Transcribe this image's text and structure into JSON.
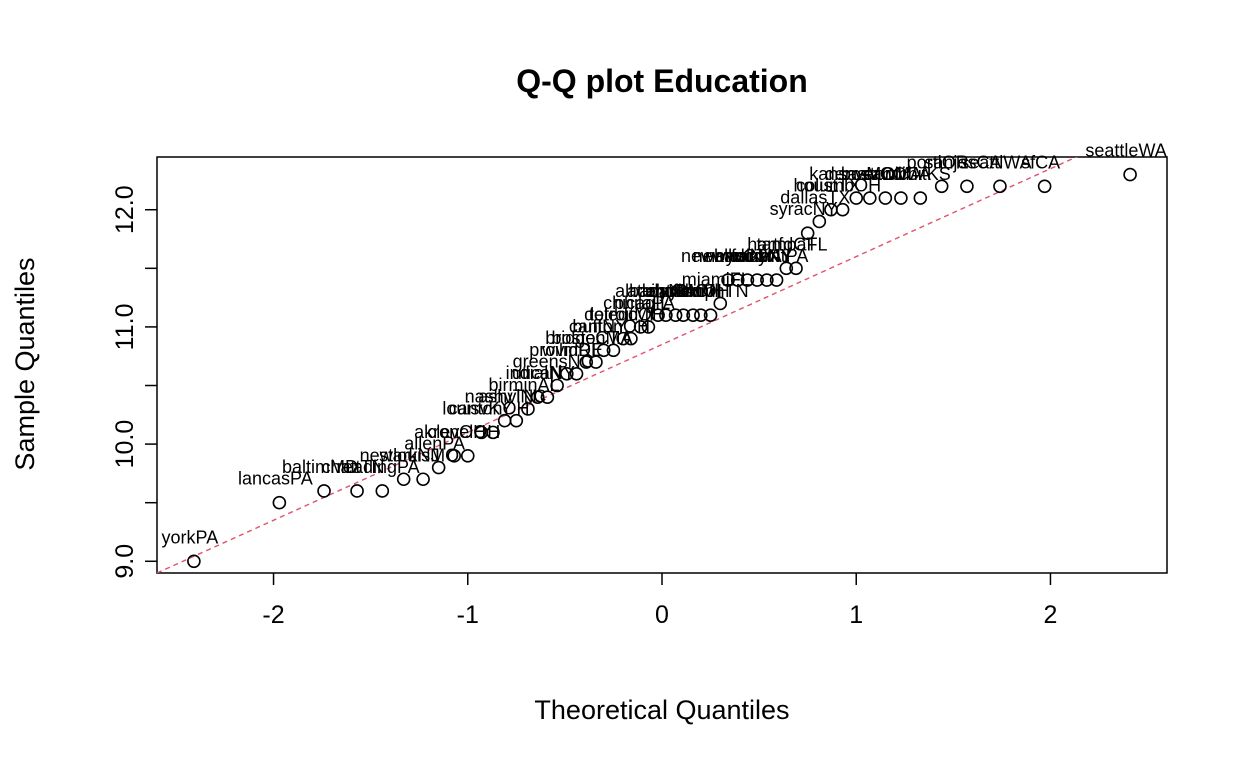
{
  "chart_data": {
    "type": "scatter",
    "title": "Q-Q plot Education",
    "xlabel": "Theoretical Quantiles",
    "ylabel": "Sample Quantiles",
    "xlim": [
      -2.6,
      2.6
    ],
    "ylim": [
      8.9,
      12.45
    ],
    "x_ticks": [
      -2,
      -1,
      0,
      1,
      2
    ],
    "x_tick_labels": [
      "-2",
      "-1",
      "0",
      "1",
      "2"
    ],
    "y_ticks": [
      9.0,
      9.5,
      10.0,
      10.5,
      11.0,
      11.5,
      12.0
    ],
    "y_tick_labels": [
      "9.0",
      "",
      "10.0",
      "",
      "11.0",
      "",
      "12.0"
    ],
    "reference_line": {
      "intercept": 10.85,
      "slope": 0.75,
      "color": "#DF536B",
      "style": "dashed"
    },
    "series": [
      {
        "points": [
          {
            "x": -2.41,
            "y": 9.0,
            "label": "yorkPA"
          },
          {
            "x": -1.97,
            "y": 9.5,
            "label": "lancasPA"
          },
          {
            "x": -1.74,
            "y": 9.6,
            "label": "baltimMD"
          },
          {
            "x": -1.57,
            "y": 9.6,
            "label": "chattTN"
          },
          {
            "x": -1.44,
            "y": 9.6,
            "label": "readingPA"
          },
          {
            "x": -1.33,
            "y": 9.7,
            "label": "newarkNJ"
          },
          {
            "x": -1.23,
            "y": 9.7,
            "label": "stlouisMO"
          },
          {
            "x": -1.15,
            "y": 9.8,
            "label": "allenPA"
          },
          {
            "x": -1.07,
            "y": 9.9,
            "label": "akronOH"
          },
          {
            "x": -1.0,
            "y": 9.9,
            "label": "clevelOH"
          },
          {
            "x": -0.93,
            "y": 10.1,
            "label": "louisvKY"
          },
          {
            "x": -0.87,
            "y": 10.1,
            "label": "cantonOH"
          },
          {
            "x": -0.81,
            "y": 10.2,
            "label": "nashvTN"
          },
          {
            "x": -0.75,
            "y": 10.2,
            "label": "ashvlNC"
          },
          {
            "x": -0.69,
            "y": 10.3,
            "label": "birminAL"
          },
          {
            "x": -0.64,
            "y": 10.4,
            "label": "indiaIN"
          },
          {
            "x": -0.59,
            "y": 10.4,
            "label": "uticaNY"
          },
          {
            "x": -0.54,
            "y": 10.5,
            "label": "greensNC"
          },
          {
            "x": -0.49,
            "y": 10.6,
            "label": "providRI"
          },
          {
            "x": -0.44,
            "y": 10.6,
            "label": "wilmDE"
          },
          {
            "x": -0.39,
            "y": 10.7,
            "label": "bridgeCT"
          },
          {
            "x": -0.34,
            "y": 10.7,
            "label": "bostonMA"
          },
          {
            "x": -0.3,
            "y": 10.8,
            "label": "buffNY"
          },
          {
            "x": -0.25,
            "y": 10.8,
            "label": "cantonOH"
          },
          {
            "x": -0.2,
            "y": 10.9,
            "label": "detroitMI"
          },
          {
            "x": -0.16,
            "y": 10.9,
            "label": "toledoOH"
          },
          {
            "x": -0.11,
            "y": 11.0,
            "label": "chicagIL"
          },
          {
            "x": -0.07,
            "y": 11.0,
            "label": "philaPA"
          },
          {
            "x": -0.02,
            "y": 11.1,
            "label": "albanyNY"
          },
          {
            "x": 0.02,
            "y": 11.1,
            "label": "atlantGA"
          },
          {
            "x": 0.07,
            "y": 11.1,
            "label": "cincOH"
          },
          {
            "x": 0.11,
            "y": 11.1,
            "label": "columbOH"
          },
          {
            "x": 0.16,
            "y": 11.1,
            "label": "daytonOH"
          },
          {
            "x": 0.2,
            "y": 11.1,
            "label": "flintMI"
          },
          {
            "x": 0.25,
            "y": 11.1,
            "label": "memphTN"
          },
          {
            "x": 0.3,
            "y": 11.2,
            "label": "miamiFL"
          },
          {
            "x": 0.34,
            "y": 11.4,
            "label": "newhavCT"
          },
          {
            "x": 0.39,
            "y": 11.4,
            "label": "newyrkNY"
          },
          {
            "x": 0.44,
            "y": 11.4,
            "label": "norfolkVA"
          },
          {
            "x": 0.49,
            "y": 11.4,
            "label": "albanyNY"
          },
          {
            "x": 0.54,
            "y": 11.4,
            "label": "rochNY"
          },
          {
            "x": 0.59,
            "y": 11.4,
            "label": "scrantPA"
          },
          {
            "x": 0.64,
            "y": 11.5,
            "label": "hartfdCT"
          },
          {
            "x": 0.69,
            "y": 11.5,
            "label": "tampaFL"
          },
          {
            "x": 0.75,
            "y": 11.8,
            "label": "syracNY"
          },
          {
            "x": 0.81,
            "y": 11.9,
            "label": "dallasTX"
          },
          {
            "x": 0.87,
            "y": 12.0,
            "label": "houstTX"
          },
          {
            "x": 0.93,
            "y": 12.0,
            "label": "columbOH"
          },
          {
            "x": 1.0,
            "y": 12.1,
            "label": "kansasMO"
          },
          {
            "x": 1.07,
            "y": 12.1,
            "label": "denverCO"
          },
          {
            "x": 1.15,
            "y": 12.1,
            "label": "bostonMA"
          },
          {
            "x": 1.23,
            "y": 12.1,
            "label": "sandiCA"
          },
          {
            "x": 1.33,
            "y": 12.1,
            "label": "wichitKS"
          },
          {
            "x": 1.44,
            "y": 12.2,
            "label": "portlOR"
          },
          {
            "x": 1.57,
            "y": 12.2,
            "label": "sanjosCA"
          },
          {
            "x": 1.74,
            "y": 12.2,
            "label": "seattlWA"
          },
          {
            "x": 1.97,
            "y": 12.2,
            "label": "sfCA"
          },
          {
            "x": 2.41,
            "y": 12.3,
            "label": "seattleWA"
          }
        ]
      }
    ],
    "marker": "open-circle",
    "grid": false,
    "legend": "none"
  }
}
